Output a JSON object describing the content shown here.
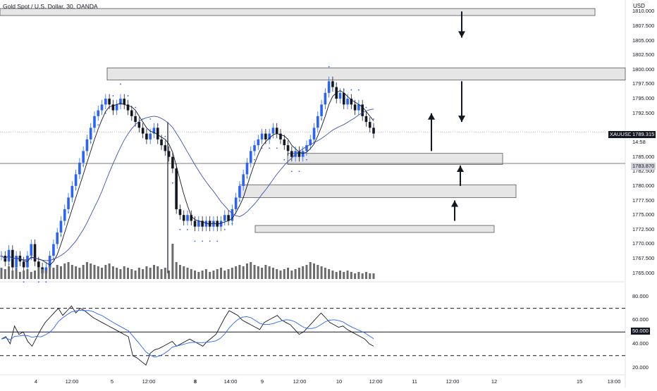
{
  "header": {
    "title": "Gold Spot / U.S. Dollar, 30, OANDA",
    "currency": "USD"
  },
  "price_axis": {
    "ticks": [
      "1810.000",
      "1807.500",
      "1805.000",
      "1802.500",
      "1800.000",
      "1797.500",
      "1795.000",
      "1792.500",
      "1785.000",
      "1782.500",
      "1780.000",
      "1777.500",
      "1775.000",
      "1772.500",
      "1770.000",
      "1767.500",
      "1765.000"
    ],
    "symbol_label": "XAUUSD",
    "last_price": "1789.315",
    "countdown": "14:58",
    "hline_price": "1783.870"
  },
  "rsi_axis": {
    "ticks": [
      "80.000",
      "60.000",
      "40.000",
      "20.000"
    ],
    "mid_label": "50.000"
  },
  "time_axis": {
    "ticks": [
      {
        "label": "4",
        "bold": false
      },
      {
        "label": "12:00",
        "bold": false
      },
      {
        "label": "5",
        "bold": false
      },
      {
        "label": "12:00",
        "bold": false
      },
      {
        "label": "8",
        "bold": true
      },
      {
        "label": "14:00",
        "bold": false
      },
      {
        "label": "9",
        "bold": false
      },
      {
        "label": "12:00",
        "bold": false
      },
      {
        "label": "10",
        "bold": false
      },
      {
        "label": "12:00",
        "bold": false
      },
      {
        "label": "11",
        "bold": false
      },
      {
        "label": "12:00",
        "bold": false
      },
      {
        "label": "12",
        "bold": false
      },
      {
        "label": "15",
        "bold": false
      },
      {
        "label": "13:00",
        "bold": false
      }
    ]
  },
  "chart_data": {
    "type": "candlestick",
    "symbol": "XAUUSD",
    "timeframe": "30",
    "close_series": [
      1768,
      1767,
      1769,
      1766,
      1768,
      1767,
      1766,
      1768,
      1770,
      1767,
      1766,
      1765,
      1766,
      1768,
      1770,
      1772,
      1774,
      1776,
      1778,
      1780,
      1782,
      1784,
      1786,
      1788,
      1790,
      1792,
      1793,
      1794,
      1795,
      1794,
      1793,
      1794,
      1795,
      1794,
      1793,
      1792,
      1791,
      1790,
      1789,
      1788,
      1789,
      1790,
      1788,
      1787,
      1786,
      1785,
      1783,
      1776,
      1775,
      1774,
      1775,
      1774,
      1773,
      1774,
      1773,
      1774,
      1773,
      1774,
      1773,
      1774,
      1775,
      1774,
      1776,
      1778,
      1780,
      1782,
      1784,
      1786,
      1787,
      1788,
      1789,
      1788,
      1789,
      1790,
      1789,
      1788,
      1787,
      1786,
      1785,
      1786,
      1785,
      1786,
      1787,
      1788,
      1790,
      1792,
      1794,
      1796,
      1798,
      1797,
      1795,
      1796,
      1794,
      1795,
      1794,
      1793,
      1794,
      1792,
      1791,
      1790,
      1789
    ],
    "price_range": [
      1764,
      1811
    ],
    "volume": [
      8,
      7,
      9,
      6,
      8,
      5,
      6,
      7,
      5,
      6,
      8,
      7,
      6,
      9,
      8,
      10,
      9,
      11,
      12,
      10,
      9,
      8,
      10,
      12,
      11,
      10,
      9,
      8,
      10,
      11,
      9,
      8,
      7,
      9,
      8,
      7,
      6,
      8,
      7,
      9,
      8,
      10,
      9,
      7,
      8,
      6,
      25,
      12,
      10,
      9,
      8,
      7,
      6,
      5,
      6,
      7,
      5,
      6,
      7,
      8,
      6,
      7,
      8,
      9,
      10,
      9,
      11,
      12,
      10,
      9,
      8,
      10,
      9,
      8,
      7,
      6,
      7,
      8,
      6,
      7,
      8,
      9,
      10,
      12,
      11,
      10,
      9,
      8,
      7,
      6,
      5,
      6,
      5,
      6,
      5,
      4,
      5,
      4,
      5,
      4,
      4
    ],
    "rsi": [
      44,
      46,
      40,
      55,
      48,
      50,
      42,
      38,
      45,
      52,
      58,
      62,
      66,
      70,
      64,
      68,
      72,
      66,
      70,
      68,
      65,
      62,
      60,
      58,
      56,
      54,
      52,
      50,
      48,
      46,
      30,
      28,
      25,
      22,
      32,
      35,
      36,
      38,
      40,
      42,
      38,
      40,
      42,
      44,
      42,
      40,
      38,
      42,
      45,
      48,
      55,
      62,
      68,
      66,
      64,
      60,
      58,
      56,
      54,
      52,
      58,
      60,
      62,
      64,
      60,
      58,
      56,
      52,
      48,
      50,
      54,
      58,
      62,
      66,
      62,
      58,
      56,
      54,
      55,
      52,
      50,
      48,
      46,
      44,
      40,
      38
    ],
    "rsi_levels": [
      70,
      50,
      30
    ],
    "zones": [
      {
        "low": 1809.3,
        "high": 1810.5
      },
      {
        "low": 1798.2,
        "high": 1800.3
      },
      {
        "low": 1783.7,
        "high": 1785.6
      },
      {
        "low": 1778.0,
        "high": 1780.2
      },
      {
        "low": 1772.0,
        "high": 1773.2
      }
    ],
    "arrows": [
      {
        "direction": "down",
        "from": 1810,
        "to": 1805.5
      },
      {
        "direction": "down",
        "from": 1798,
        "to": 1791
      },
      {
        "direction": "up",
        "from": 1786,
        "to": 1792.5
      },
      {
        "direction": "up",
        "from": 1780,
        "to": 1783.5
      },
      {
        "direction": "up",
        "from": 1774,
        "to": 1777.5
      }
    ]
  }
}
